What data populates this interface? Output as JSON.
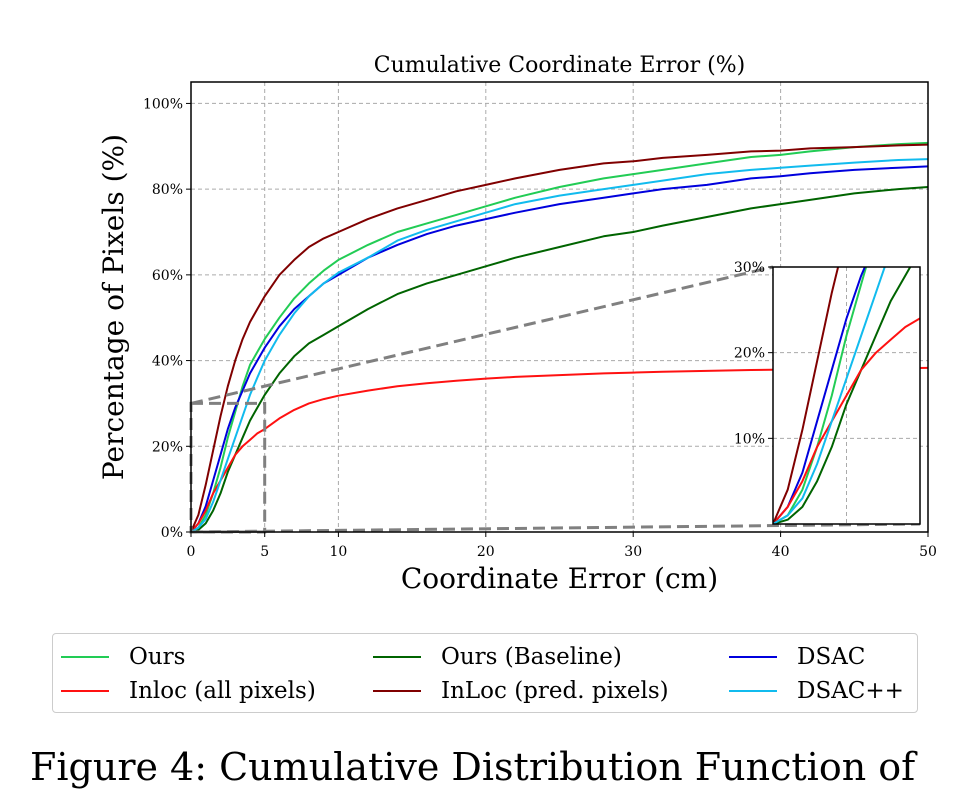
{
  "chart_data": {
    "type": "line",
    "title": "Cumulative Coordinate Error (%)",
    "xlabel": "Coordinate Error (cm)",
    "ylabel": "Percentage of Pixels (%)",
    "xlim": [
      0,
      50
    ],
    "ylim": [
      0,
      1.05
    ],
    "x_ticks": [
      0,
      5,
      10,
      20,
      30,
      40,
      50
    ],
    "x_tick_labels": [
      "0",
      "5",
      "10",
      "20",
      "30",
      "40",
      "50"
    ],
    "y_ticks": [
      0,
      0.2,
      0.4,
      0.6,
      0.8,
      1.0
    ],
    "y_tick_labels": [
      "0%",
      "20%",
      "40%",
      "60%",
      "80%",
      "100%"
    ],
    "grid": true,
    "legend_position": "below",
    "x": [
      0,
      0.5,
      1,
      1.5,
      2,
      2.5,
      3,
      3.5,
      4,
      4.5,
      5,
      6,
      7,
      8,
      9,
      10,
      12,
      14,
      16,
      18,
      20,
      22,
      25,
      28,
      30,
      32,
      35,
      38,
      40,
      42,
      45,
      48,
      50
    ],
    "series": [
      {
        "name": "Ours",
        "color": "#22cc55",
        "values": [
          0,
          0.01,
          0.04,
          0.09,
          0.15,
          0.22,
          0.28,
          0.34,
          0.39,
          0.42,
          0.45,
          0.5,
          0.545,
          0.58,
          0.61,
          0.635,
          0.67,
          0.7,
          0.72,
          0.74,
          0.76,
          0.78,
          0.805,
          0.825,
          0.835,
          0.845,
          0.86,
          0.875,
          0.88,
          0.888,
          0.898,
          0.905,
          0.908
        ]
      },
      {
        "name": "Ours (Baseline)",
        "color": "#006400",
        "values": [
          0,
          0.005,
          0.02,
          0.05,
          0.09,
          0.14,
          0.18,
          0.22,
          0.26,
          0.29,
          0.32,
          0.37,
          0.41,
          0.44,
          0.46,
          0.48,
          0.52,
          0.555,
          0.58,
          0.6,
          0.62,
          0.64,
          0.665,
          0.69,
          0.7,
          0.715,
          0.735,
          0.755,
          0.765,
          0.775,
          0.79,
          0.8,
          0.805
        ]
      },
      {
        "name": "DSAC",
        "color": "#0000dd",
        "values": [
          0,
          0.02,
          0.06,
          0.12,
          0.18,
          0.24,
          0.29,
          0.33,
          0.37,
          0.4,
          0.43,
          0.48,
          0.52,
          0.55,
          0.58,
          0.6,
          0.64,
          0.67,
          0.695,
          0.715,
          0.73,
          0.745,
          0.765,
          0.78,
          0.79,
          0.8,
          0.81,
          0.825,
          0.83,
          0.837,
          0.845,
          0.85,
          0.853
        ]
      },
      {
        "name": "Inloc (all pixels)",
        "color": "#ff1111",
        "values": [
          0,
          0.02,
          0.05,
          0.09,
          0.12,
          0.15,
          0.18,
          0.2,
          0.215,
          0.23,
          0.24,
          0.265,
          0.285,
          0.3,
          0.31,
          0.318,
          0.33,
          0.34,
          0.347,
          0.353,
          0.358,
          0.362,
          0.366,
          0.37,
          0.372,
          0.374,
          0.376,
          0.378,
          0.379,
          0.38,
          0.381,
          0.382,
          0.383
        ]
      },
      {
        "name": "InLoc (pred. pixels)",
        "color": "#800000",
        "values": [
          0,
          0.04,
          0.11,
          0.19,
          0.27,
          0.34,
          0.4,
          0.45,
          0.49,
          0.52,
          0.55,
          0.6,
          0.635,
          0.665,
          0.685,
          0.7,
          0.73,
          0.755,
          0.775,
          0.795,
          0.81,
          0.825,
          0.845,
          0.86,
          0.865,
          0.873,
          0.88,
          0.888,
          0.89,
          0.895,
          0.898,
          0.902,
          0.904
        ]
      },
      {
        "name": "DSAC++",
        "color": "#11bbee",
        "values": [
          0,
          0.01,
          0.03,
          0.07,
          0.12,
          0.17,
          0.22,
          0.27,
          0.32,
          0.36,
          0.4,
          0.46,
          0.51,
          0.55,
          0.58,
          0.605,
          0.64,
          0.68,
          0.705,
          0.725,
          0.745,
          0.765,
          0.785,
          0.8,
          0.81,
          0.82,
          0.835,
          0.845,
          0.85,
          0.855,
          0.862,
          0.868,
          0.87
        ]
      }
    ],
    "inset": {
      "xlim": [
        0,
        5
      ],
      "ylim": [
        0,
        0.3
      ],
      "y_ticks": [
        0.1,
        0.2,
        0.3
      ],
      "y_tick_labels": [
        "10%",
        "20%",
        "30%"
      ],
      "zoom_region": {
        "x": [
          0,
          5
        ],
        "y": [
          0,
          0.3
        ]
      }
    }
  },
  "legend": {
    "items": [
      {
        "label": "Ours",
        "color": "#22cc55"
      },
      {
        "label": "Ours (Baseline)",
        "color": "#006400"
      },
      {
        "label": "DSAC",
        "color": "#0000dd"
      },
      {
        "label": "Inloc (all pixels)",
        "color": "#ff1111"
      },
      {
        "label": "InLoc (pred. pixels)",
        "color": "#800000"
      },
      {
        "label": "DSAC++",
        "color": "#11bbee"
      }
    ]
  },
  "caption": "Figure 4: Cumulative Distribution Function of"
}
